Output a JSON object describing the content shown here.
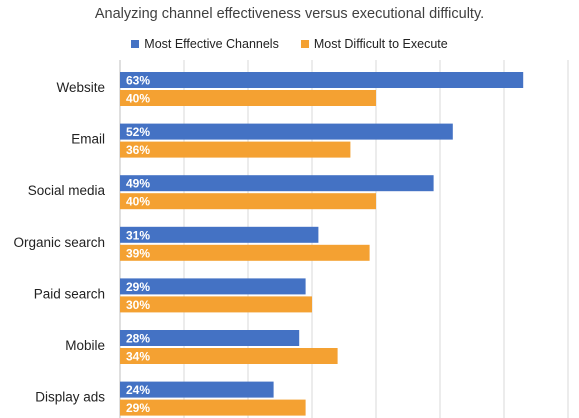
{
  "chart_data": {
    "type": "bar",
    "orientation": "horizontal",
    "title": "Analyzing channel effectiveness versus executional difficulty.",
    "categories": [
      "Website",
      "Email",
      "Social media",
      "Organic search",
      "Paid search",
      "Mobile",
      "Display ads"
    ],
    "series": [
      {
        "name": "Most Effective Channels",
        "color": "#4472C4",
        "values": [
          63,
          52,
          49,
          31,
          29,
          28,
          24
        ],
        "labels": [
          "63%",
          "52%",
          "49%",
          "31%",
          "29%",
          "28%",
          "24%"
        ]
      },
      {
        "name": "Most Difficult to Execute",
        "color": "#F4A132",
        "values": [
          40,
          36,
          40,
          39,
          30,
          34,
          29
        ],
        "labels": [
          "40%",
          "36%",
          "40%",
          "39%",
          "30%",
          "34%",
          "29%"
        ]
      }
    ],
    "xlim": [
      0,
      70
    ],
    "grid": true,
    "legend_position": "top"
  }
}
